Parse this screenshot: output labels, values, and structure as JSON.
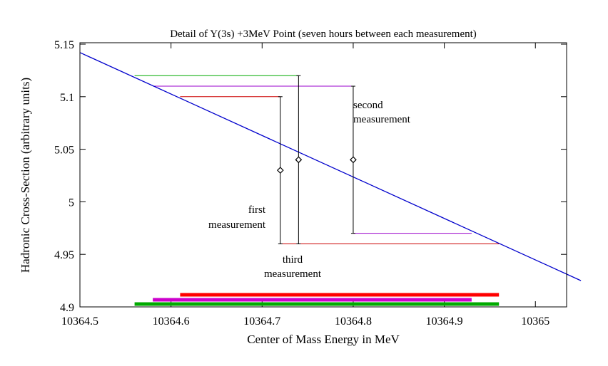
{
  "chart_data": {
    "type": "line",
    "title": "Detail of Y(3s) +3MeV Point (seven hours between each measurement)",
    "xlabel": "Center of Mass Energy in MeV",
    "ylabel": "Hadronic Cross-Section (arbitrary units)",
    "xlim": [
      10364.5,
      10365.05
    ],
    "ylim": [
      4.9,
      5.15
    ],
    "grid": false,
    "x_ticks": [
      "10364.5",
      "10364.6",
      "10364.7",
      "10364.8",
      "10364.9",
      "10365"
    ],
    "y_ticks": [
      "4.9",
      "4.95",
      "5",
      "5.05",
      "5.1",
      "5.15"
    ],
    "fit_line": {
      "color": "#0000cc",
      "points": [
        [
          10364.5,
          5.142
        ],
        [
          10365.05,
          4.925
        ]
      ]
    },
    "measurements": [
      {
        "x": 10364.72,
        "y": 5.03,
        "ymin": 4.96,
        "ymax": 5.1,
        "color": "#cc0000",
        "upper_line": [
          10364.61,
          10364.72
        ],
        "lower_line": [
          10364.72,
          10364.96
        ],
        "energy_bar": {
          "xmin": 10364.61,
          "xmax": 10364.96,
          "color": "#ff0000"
        }
      },
      {
        "x": 10364.74,
        "y": 5.04,
        "ymin": 4.96,
        "ymax": 5.12,
        "color": "#00aa00",
        "upper_line": [
          10364.56,
          10364.74
        ],
        "lower_line": null,
        "energy_bar": {
          "xmin": 10364.56,
          "xmax": 10364.96,
          "color": "#00aa00"
        }
      },
      {
        "x": 10364.8,
        "y": 5.04,
        "ymin": 4.97,
        "ymax": 5.11,
        "color": "#9900cc",
        "upper_line": [
          10364.58,
          10364.8
        ],
        "lower_line": [
          10364.8,
          10364.93
        ],
        "energy_bar": {
          "xmin": 10364.58,
          "xmax": 10364.93,
          "color": "#cc00cc"
        }
      }
    ],
    "annotations": {
      "first_1": "first",
      "first_2": "measurement",
      "second_1": "second",
      "second_2": "measurement",
      "third_1": "third",
      "third_2": "measurement"
    }
  }
}
